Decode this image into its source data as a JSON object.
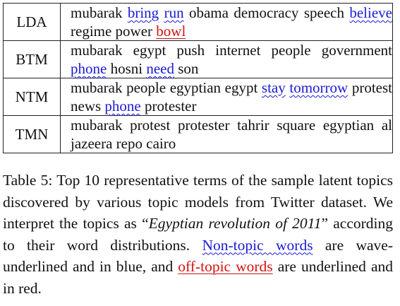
{
  "table": {
    "rows": [
      {
        "model": "LDA",
        "terms": [
          {
            "text": "mubarak ",
            "style": "plain"
          },
          {
            "text": "bring",
            "style": "wave"
          },
          {
            "text": " ",
            "style": "plain"
          },
          {
            "text": "run",
            "style": "wave"
          },
          {
            "text": " obama democracy speech ",
            "style": "plain"
          },
          {
            "text": "believe",
            "style": "wave"
          },
          {
            "text": " regime power ",
            "style": "plain"
          },
          {
            "text": "bowl",
            "style": "off"
          }
        ]
      },
      {
        "model": "BTM",
        "terms": [
          {
            "text": "mubarak egypt push internet people govern­ment ",
            "style": "plain"
          },
          {
            "text": "phone",
            "style": "wave"
          },
          {
            "text": " hosni ",
            "style": "plain"
          },
          {
            "text": "need",
            "style": "wave"
          },
          {
            "text": " son",
            "style": "plain"
          }
        ]
      },
      {
        "model": "NTM",
        "terms": [
          {
            "text": "mubarak people egyptian egypt ",
            "style": "plain"
          },
          {
            "text": "stay",
            "style": "wave"
          },
          {
            "text": " ",
            "style": "plain"
          },
          {
            "text": "tomorrow",
            "style": "wave"
          },
          {
            "text": " protest news ",
            "style": "plain"
          },
          {
            "text": "phone",
            "style": "wave"
          },
          {
            "text": " protester",
            "style": "plain"
          }
        ]
      },
      {
        "model": "TMN",
        "terms": [
          {
            "text": "mubarak protest protester tahrir square egyptian al jazeera repo cairo",
            "style": "plain"
          }
        ]
      }
    ]
  },
  "caption": {
    "prefix": "Table 5: Top 10 representative terms of the sample la­tent topics discovered by various topic models from Twitter dataset.  We interpret the topics as “",
    "italic": "Egyptian revolution of 2011",
    "middle": "” according to their word distribu­tions.  ",
    "nontopic_label": "Non-topic words",
    "middle2": " are wave-underlined and in blue, and ",
    "offtopic_label": "off-topic words",
    "suffix": " are underlined and in red."
  }
}
